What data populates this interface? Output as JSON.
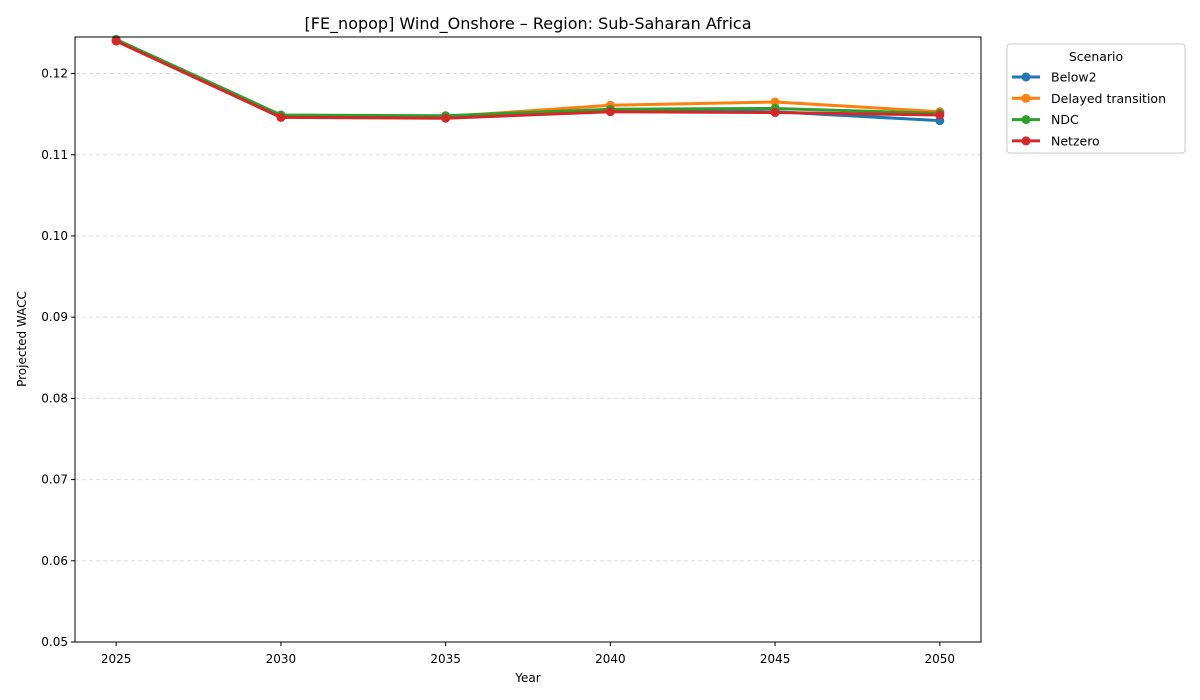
{
  "chart_data": {
    "type": "line",
    "title": "[FE_nopop] Wind_Onshore – Region: Sub-Saharan Africa",
    "xlabel": "Year",
    "ylabel": "Projected WACC",
    "x": [
      2025,
      2030,
      2035,
      2040,
      2045,
      2050
    ],
    "xlim": [
      2023.75,
      2051.25
    ],
    "ylim": [
      0.05,
      0.1245
    ],
    "x_ticks": [
      "2025",
      "2030",
      "2035",
      "2040",
      "2045",
      "2050"
    ],
    "y_ticks": [
      "0.05",
      "0.06",
      "0.07",
      "0.08",
      "0.09",
      "0.10",
      "0.11",
      "0.12"
    ],
    "y_tick_values": [
      0.05,
      0.06,
      0.07,
      0.08,
      0.09,
      0.1,
      0.11,
      0.12
    ],
    "grid": "horizontal dashed",
    "legend": {
      "title": "Scenario",
      "placement": "outside-right"
    },
    "series": [
      {
        "name": "Below2",
        "color": "#1f77b4",
        "values": [
          0.1241,
          0.1148,
          0.1147,
          0.1155,
          0.1153,
          0.1142
        ]
      },
      {
        "name": "Delayed transition",
        "color": "#ff7f0e",
        "values": [
          0.1241,
          0.1147,
          0.1147,
          0.1161,
          0.1165,
          0.1153
        ]
      },
      {
        "name": "NDC",
        "color": "#2ca02c",
        "values": [
          0.1242,
          0.1149,
          0.1148,
          0.1156,
          0.1157,
          0.1151
        ]
      },
      {
        "name": "Netzero",
        "color": "#d62728",
        "values": [
          0.124,
          0.1146,
          0.1145,
          0.1153,
          0.1152,
          0.1149
        ]
      }
    ]
  }
}
